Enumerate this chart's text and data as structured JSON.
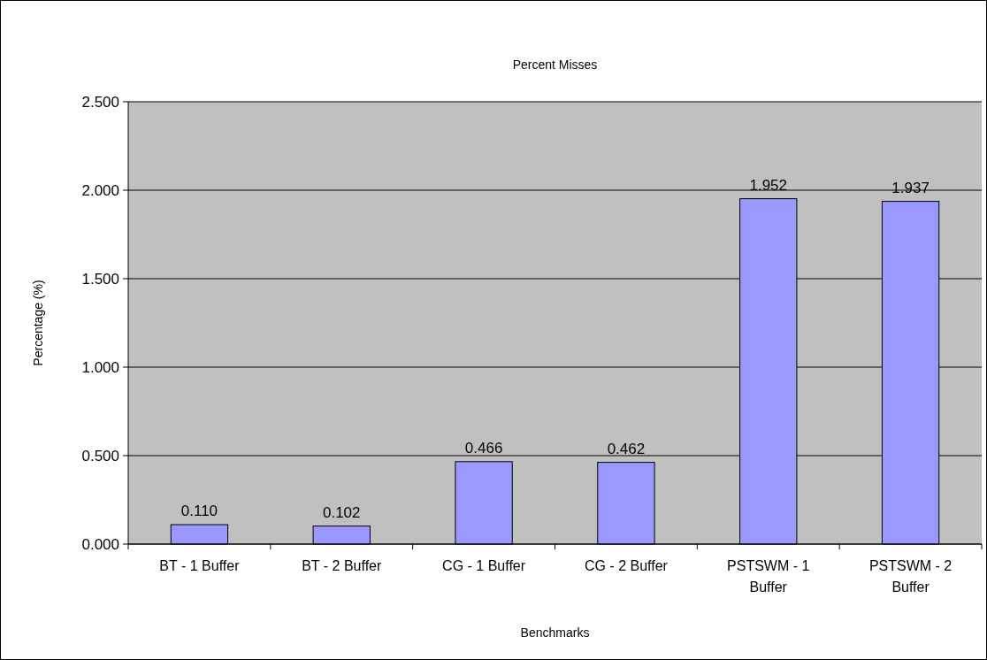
{
  "chart_data": {
    "type": "bar",
    "title": "Percent Misses",
    "xlabel": "Benchmarks",
    "ylabel": "Percentage (%)",
    "categories": [
      "BT - 1 Buffer",
      "BT - 2 Buffer",
      "CG - 1 Buffer",
      "CG - 2 Buffer",
      "PSTSWM - 1 Buffer",
      "PSTSWM - 2 Buffer"
    ],
    "values": [
      0.11,
      0.102,
      0.466,
      0.462,
      1.952,
      1.937
    ],
    "value_labels": [
      "0.110",
      "0.102",
      "0.466",
      "0.462",
      "1.952",
      "1.937"
    ],
    "color": "#9999ff",
    "ylim": [
      0,
      2.5
    ],
    "yticks": [
      {
        "value": 0,
        "label": "0.000"
      },
      {
        "value": 0.5,
        "label": "0.500"
      },
      {
        "value": 1,
        "label": "1.000"
      },
      {
        "value": 1.5,
        "label": "1.500"
      },
      {
        "value": 2,
        "label": "2.000"
      },
      {
        "value": 2.5,
        "label": "2.500"
      }
    ],
    "grid": "y"
  }
}
